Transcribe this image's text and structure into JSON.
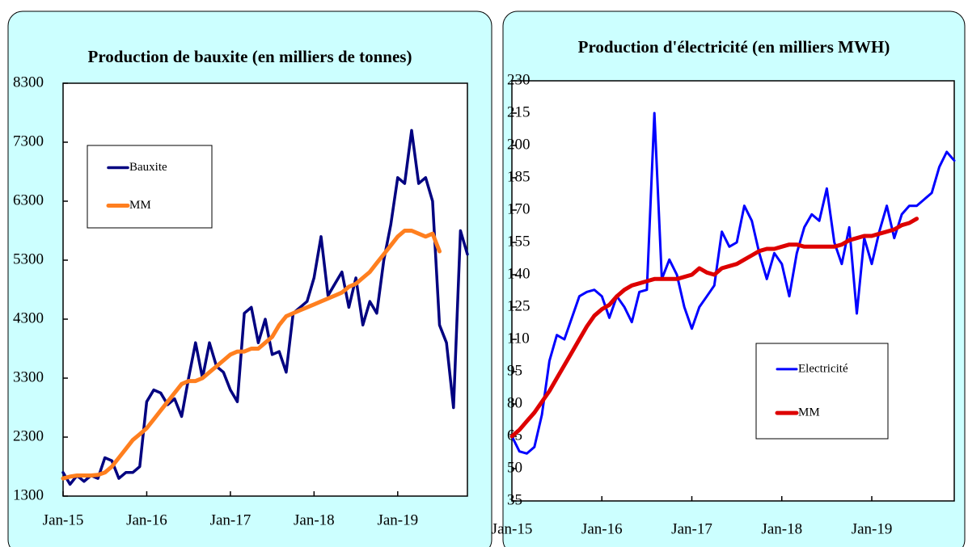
{
  "chart_data": [
    {
      "type": "line",
      "title": "Production de bauxite (en milliers de tonnes)",
      "categories": [
        "Jan-15",
        null,
        null,
        null,
        null,
        null,
        null,
        null,
        null,
        null,
        null,
        null,
        "Jan-16",
        null,
        null,
        null,
        null,
        null,
        null,
        null,
        null,
        null,
        null,
        null,
        "Jan-17",
        null,
        null,
        null,
        null,
        null,
        null,
        null,
        null,
        null,
        null,
        null,
        "Jan-18",
        null,
        null,
        null,
        null,
        null,
        null,
        null,
        null,
        null,
        null,
        null,
        "Jan-19",
        null,
        null,
        null,
        null,
        null,
        null,
        null,
        null,
        null,
        null
      ],
      "series": [
        {
          "name": "Bauxite",
          "color": "#000080",
          "values": [
            1700,
            1500,
            1650,
            1550,
            1650,
            1600,
            1950,
            1900,
            1600,
            1700,
            1700,
            1800,
            2900,
            3100,
            3050,
            2850,
            2950,
            2650,
            3300,
            3900,
            3300,
            3900,
            3500,
            3400,
            3100,
            2900,
            4400,
            4500,
            3900,
            4300,
            3700,
            3750,
            3400,
            4400,
            4500,
            4600,
            5000,
            5700,
            4700,
            4900,
            5100,
            4500,
            5000,
            4200,
            4600,
            4400,
            5300,
            5900,
            6700,
            6600,
            7500,
            6600,
            6700,
            6300,
            4200,
            3900,
            2800,
            5800,
            5400
          ]
        },
        {
          "name": "MM",
          "color": "#ff7f1f",
          "values": [
            1600,
            1630,
            1650,
            1650,
            1650,
            1660,
            1700,
            1800,
            1950,
            2100,
            2250,
            2350,
            2450,
            2600,
            2750,
            2900,
            3050,
            3200,
            3250,
            3250,
            3300,
            3400,
            3500,
            3600,
            3700,
            3750,
            3750,
            3800,
            3800,
            3900,
            4000,
            4200,
            4350,
            4400,
            4450,
            4500,
            4550,
            4600,
            4650,
            4700,
            4750,
            4850,
            4900,
            5000,
            5100,
            5250,
            5400,
            5550,
            5700,
            5800,
            5800,
            5750,
            5700,
            5750,
            5450,
            null,
            null,
            null,
            null
          ]
        }
      ],
      "ylim": [
        1300,
        8300
      ],
      "yticks": [
        1300,
        2300,
        3300,
        4300,
        5300,
        6300,
        7300,
        8300
      ],
      "legend": "upper left"
    },
    {
      "type": "line",
      "title": "Production d'électricité (en milliers MWH)",
      "categories": [
        "Jan-15",
        null,
        null,
        null,
        null,
        null,
        null,
        null,
        null,
        null,
        null,
        null,
        "Jan-16",
        null,
        null,
        null,
        null,
        null,
        null,
        null,
        null,
        null,
        null,
        null,
        "Jan-17",
        null,
        null,
        null,
        null,
        null,
        null,
        null,
        null,
        null,
        null,
        null,
        "Jan-18",
        null,
        null,
        null,
        null,
        null,
        null,
        null,
        null,
        null,
        null,
        null,
        "Jan-19",
        null,
        null,
        null,
        null,
        null,
        null,
        null,
        null,
        null,
        null,
        null
      ],
      "series": [
        {
          "name": "Electricité",
          "color": "#0000ff",
          "values": [
            65,
            58,
            57,
            60,
            75,
            100,
            112,
            110,
            120,
            130,
            132,
            133,
            130,
            120,
            130,
            125,
            118,
            132,
            133,
            215,
            138,
            147,
            140,
            125,
            115,
            125,
            130,
            135,
            160,
            153,
            155,
            172,
            165,
            150,
            138,
            150,
            145,
            130,
            150,
            162,
            168,
            165,
            180,
            155,
            145,
            162,
            122,
            157,
            145,
            160,
            172,
            157,
            168,
            172,
            172,
            175,
            178,
            190,
            197,
            193
          ]
        },
        {
          "name": "MM",
          "color": "#dd0000",
          "values": [
            65,
            68,
            72,
            76,
            81,
            86,
            92,
            98,
            104,
            110,
            116,
            121,
            124,
            126,
            130,
            133,
            135,
            136,
            137,
            138,
            138,
            138,
            138,
            139,
            140,
            143,
            141,
            140,
            143,
            144,
            145,
            147,
            149,
            151,
            152,
            152,
            153,
            154,
            154,
            153,
            153,
            153,
            153,
            153,
            154,
            156,
            157,
            158,
            158,
            159,
            160,
            161,
            163,
            164,
            166,
            null,
            null,
            null,
            null,
            null
          ]
        }
      ],
      "ylim": [
        35,
        230
      ],
      "yticks": [
        35,
        50,
        65,
        80,
        95,
        110,
        125,
        140,
        155,
        170,
        185,
        200,
        215,
        230
      ],
      "legend": "lower right"
    }
  ]
}
